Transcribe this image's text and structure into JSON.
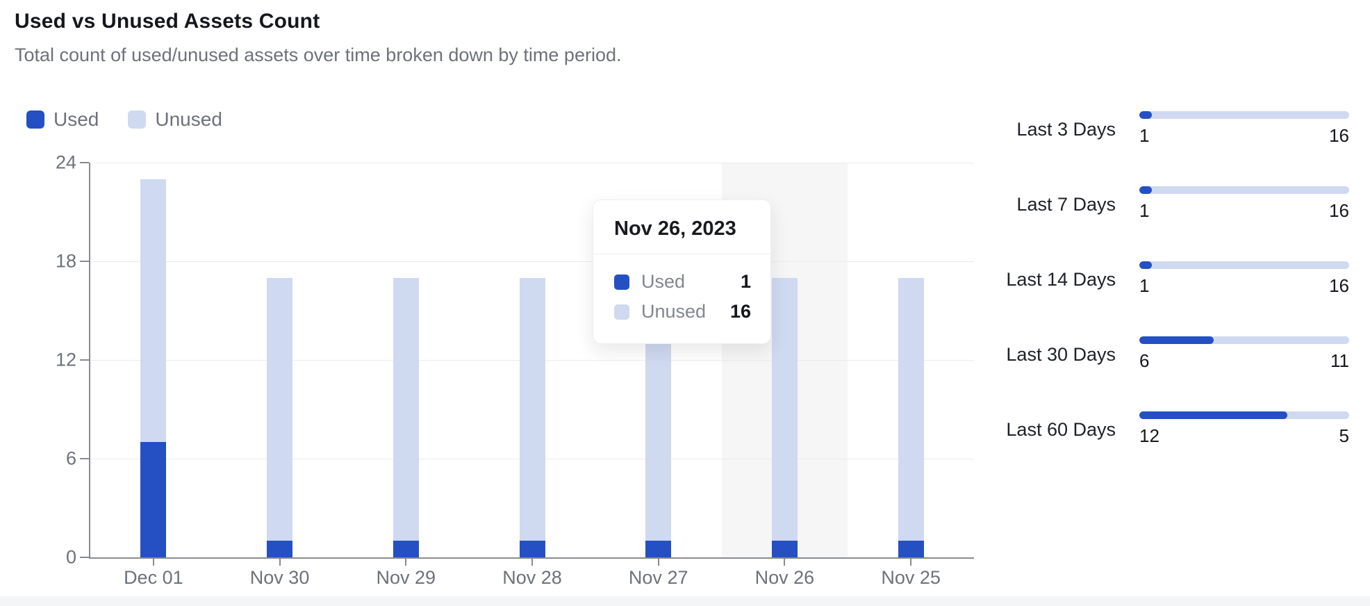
{
  "header": {
    "title": "Used vs Unused Assets Count",
    "subtitle": "Total count of used/unused assets over time broken down by time period."
  },
  "colors": {
    "used": "#2450c4",
    "unused": "#cfd9f0",
    "highlight_band": "#f6f6f6",
    "axis": "#888b90",
    "grid": "#ececec",
    "text_primary": "#15171c",
    "text_muted": "#6d7179"
  },
  "legend": {
    "items": [
      {
        "label": "Used",
        "color": "#2450c4"
      },
      {
        "label": "Unused",
        "color": "#cfd9f0"
      }
    ]
  },
  "chart_data": [
    {
      "type": "bar",
      "stacked": true,
      "title": "Used vs Unused Assets Count",
      "categories": [
        "Dec 01",
        "Nov 30",
        "Nov 29",
        "Nov 28",
        "Nov 27",
        "Nov 26",
        "Nov 25"
      ],
      "series": [
        {
          "name": "Used",
          "color": "#2450c4",
          "values": [
            7,
            1,
            1,
            1,
            1,
            1,
            1
          ]
        },
        {
          "name": "Unused",
          "color": "#cfd9f0",
          "values": [
            16,
            16,
            16,
            16,
            16,
            16,
            16
          ]
        }
      ],
      "xlabel": "",
      "ylabel": "",
      "ylim": [
        0,
        24
      ],
      "yticks": [
        0,
        6,
        12,
        18,
        24
      ],
      "grid": "horizontal",
      "legend_position": "top-left",
      "highlighted_category": "Nov 26"
    },
    {
      "type": "bar",
      "orientation": "horizontal",
      "stacked": true,
      "title": "",
      "categories": [
        "Last 3 Days",
        "Last 7 Days",
        "Last 14 Days",
        "Last 30 Days",
        "Last 60 Days"
      ],
      "series": [
        {
          "name": "Used",
          "color": "#2450c4",
          "values": [
            1,
            1,
            1,
            6,
            12
          ]
        },
        {
          "name": "Unused",
          "color": "#cfd9f0",
          "values": [
            16,
            16,
            16,
            11,
            5
          ]
        }
      ]
    }
  ],
  "tooltip": {
    "title": "Nov 26, 2023",
    "rows": [
      {
        "label": "Used",
        "value": "1",
        "color": "#2450c4"
      },
      {
        "label": "Unused",
        "value": "16",
        "color": "#cfd9f0"
      }
    ]
  }
}
